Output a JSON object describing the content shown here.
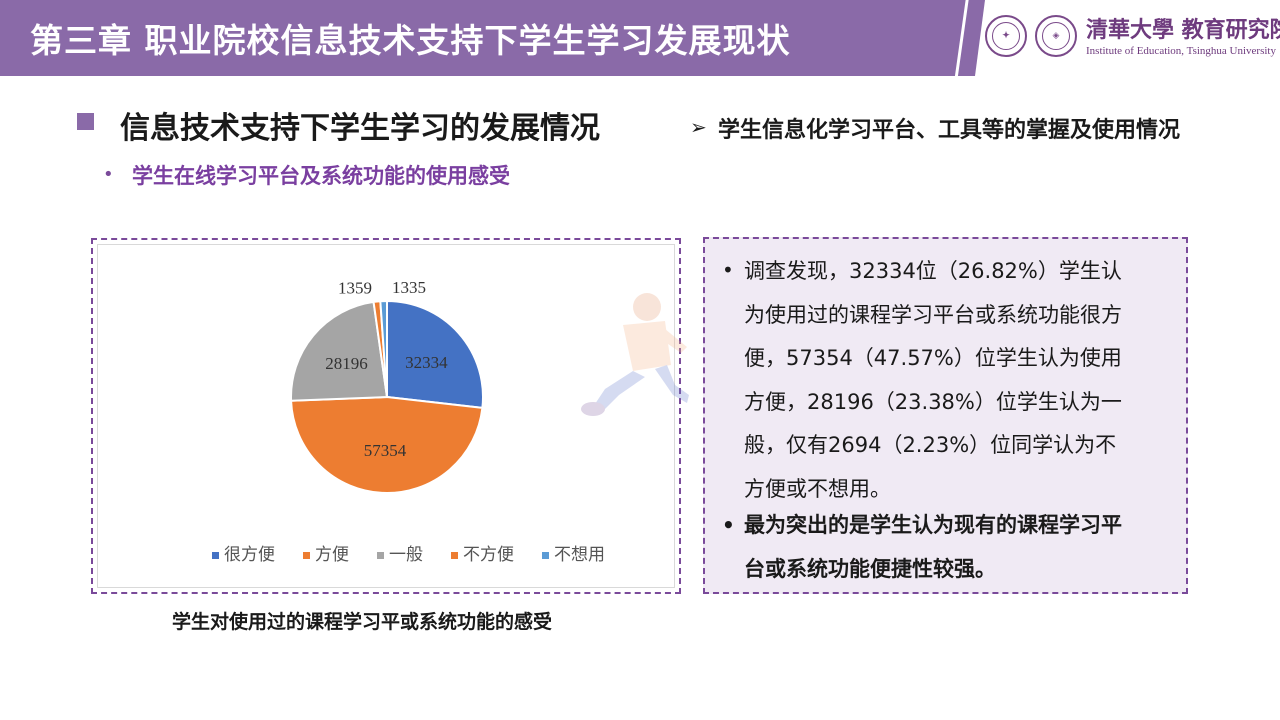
{
  "header": {
    "title": "第三章  职业院校信息技术支持下学生学习发展现状",
    "university_name": "清華大學 教育研究院",
    "institute_name": "Institute of Education, Tsinghua University",
    "colors": {
      "bar": "#8a6aa8",
      "text": "#ffffff"
    }
  },
  "section": {
    "title": "信息技术支持下学生学习的发展情况",
    "sub_right": "学生信息化学习平台、工具等的掌握及使用情况",
    "sub_left": "学生在线学习平台及系统功能的使用感受"
  },
  "caption": "学生对使用过的课程学习平或系统功能的感受",
  "chart_data": {
    "type": "pie",
    "categories": [
      "很方便",
      "方便",
      "一般",
      "不方便",
      "不想用"
    ],
    "values": [
      32334,
      57354,
      28196,
      1359,
      1335
    ],
    "data_labels": [
      "32334",
      "57354",
      "28196",
      "1359",
      "1335"
    ],
    "colors": [
      "#4472c4",
      "#ed7d31",
      "#a5a5a5",
      "#ed7d31",
      "#5b9bd5"
    ],
    "legend_position": "bottom"
  },
  "findings": {
    "lines": [
      "调查发现，32334位（26.82%）学生认",
      "为使用过的课程学习平台或系统功能很方",
      "便，57354（47.57%）位学生认为使用",
      "方便，28196（23.38%）位学生认为一",
      "般，仅有2694（2.23%）位同学认为不",
      "方便或不想用。"
    ],
    "strong_lines": [
      "最为突出的是学生认为现有的课程学习平",
      "台或系统功能便捷性较强。"
    ],
    "bullet_symbol": "•"
  },
  "icons": {
    "section_marker": "square-bullet-icon",
    "arrow": "arrow-right-icon",
    "seal1": "tsinghua-seal-icon",
    "seal2": "ioe-seal-icon"
  }
}
